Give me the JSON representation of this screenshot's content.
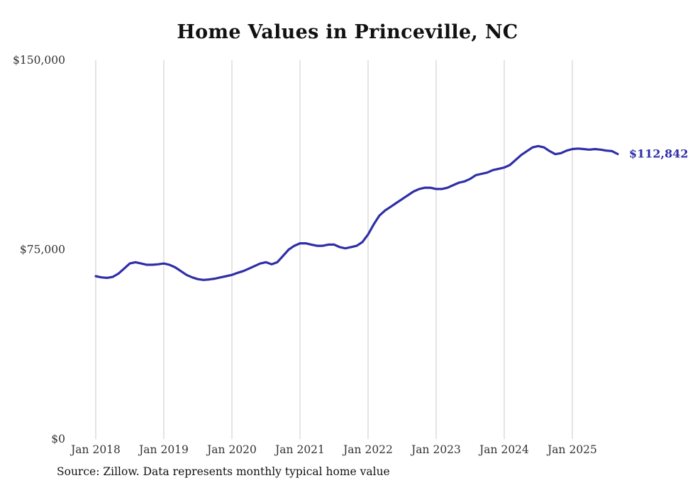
{
  "title": "Home Values in Princeville, NC",
  "source_note": "Source: Zillow. Data represents monthly typical home value",
  "end_label": "$112,842",
  "colors": {
    "line": "#2e2ea8",
    "grid": "#c9c9c9",
    "axis_text": "#333333",
    "title_text": "#111111",
    "end_label": "#2e2ea8"
  },
  "chart_data": {
    "type": "line",
    "title": "Home Values in Princeville, NC",
    "x_start": "Jan 2018",
    "x_end": "Sep 2025",
    "frequency": "monthly",
    "xlabel": "",
    "ylabel": "",
    "ylim": [
      0,
      150000
    ],
    "grid": "vertical-only",
    "y_ticks": [
      {
        "value": 0,
        "label": "$0"
      },
      {
        "value": 75000,
        "label": "$75,000"
      },
      {
        "value": 150000,
        "label": "$150,000"
      }
    ],
    "x_ticks": [
      {
        "index": 0,
        "label": "Jan 2018"
      },
      {
        "index": 12,
        "label": "Jan 2019"
      },
      {
        "index": 24,
        "label": "Jan 2020"
      },
      {
        "index": 36,
        "label": "Jan 2021"
      },
      {
        "index": 48,
        "label": "Jan 2022"
      },
      {
        "index": 60,
        "label": "Jan 2023"
      },
      {
        "index": 72,
        "label": "Jan 2024"
      },
      {
        "index": 84,
        "label": "Jan 2025"
      }
    ],
    "final_value": 112842,
    "values": [
      64500,
      64000,
      63800,
      64200,
      65500,
      67500,
      69500,
      70000,
      69500,
      69000,
      69000,
      69200,
      69500,
      69000,
      68000,
      66500,
      65000,
      64000,
      63300,
      63000,
      63200,
      63500,
      64000,
      64500,
      65000,
      65800,
      66500,
      67500,
      68500,
      69500,
      70000,
      69200,
      70000,
      72500,
      75000,
      76500,
      77500,
      77500,
      77000,
      76500,
      76500,
      77000,
      77000,
      76000,
      75500,
      76000,
      76500,
      78000,
      81000,
      85000,
      88500,
      90500,
      92000,
      93500,
      95000,
      96500,
      98000,
      99000,
      99500,
      99500,
      99000,
      99000,
      99500,
      100500,
      101500,
      102000,
      103000,
      104500,
      105000,
      105500,
      106500,
      107000,
      107500,
      108500,
      110500,
      112500,
      114000,
      115500,
      116000,
      115500,
      114000,
      112800,
      113200,
      114200,
      114800,
      115000,
      114800,
      114600,
      114800,
      114600,
      114200,
      114000,
      112842
    ]
  }
}
